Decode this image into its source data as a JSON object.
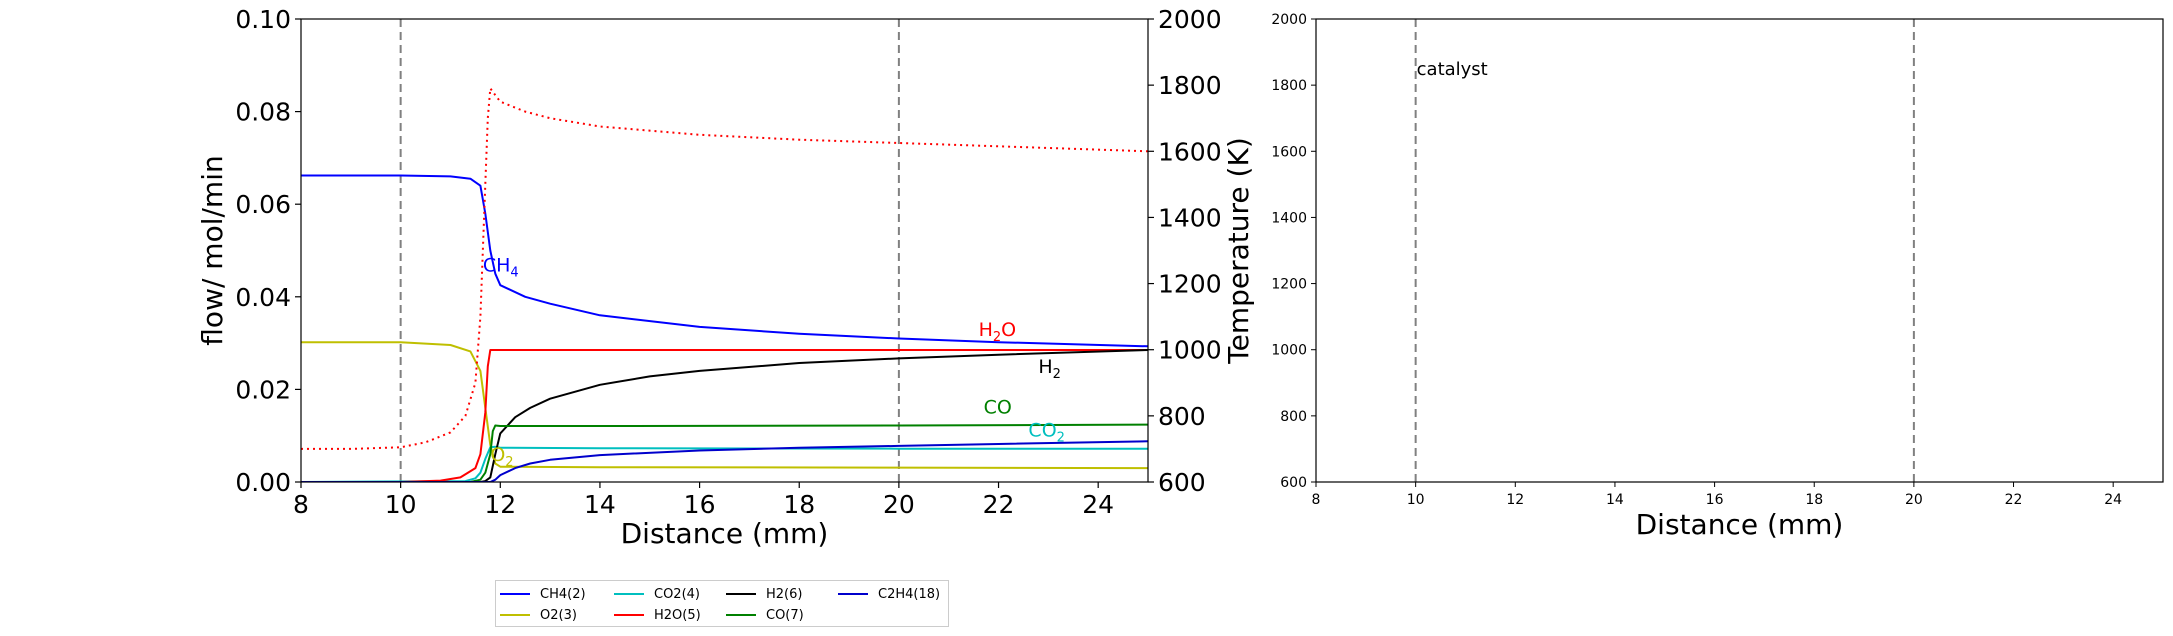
{
  "chart_data": [
    {
      "type": "line",
      "xlabel": "Distance (mm)",
      "ylabel": "flow/ mol/min",
      "y2label": "Temperature (K)",
      "xlim": [
        8,
        25
      ],
      "ylim": [
        0,
        0.1
      ],
      "y2lim": [
        600,
        2000
      ],
      "x_ticks": [
        8,
        10,
        12,
        14,
        16,
        18,
        20,
        22,
        24
      ],
      "y_ticks": [
        0.0,
        0.02,
        0.04,
        0.06,
        0.08,
        0.1
      ],
      "y_tick_labels": [
        "0.00",
        "0.02",
        "0.04",
        "0.06",
        "0.08",
        "0.10"
      ],
      "y2_ticks": [
        600,
        800,
        1000,
        1200,
        1400,
        1600,
        1800,
        2000
      ],
      "vlines": [
        10,
        20
      ],
      "grid": false,
      "series": [
        {
          "name": "CH4(2)",
          "color": "#0000ff",
          "style": "solid",
          "x": [
            8,
            10,
            11,
            11.4,
            11.6,
            11.7,
            11.8,
            11.9,
            12,
            12.5,
            13,
            14,
            16,
            18,
            20,
            22,
            25
          ],
          "y": [
            0.0662,
            0.0662,
            0.066,
            0.0655,
            0.064,
            0.058,
            0.05,
            0.045,
            0.0425,
            0.04,
            0.0385,
            0.036,
            0.0335,
            0.032,
            0.031,
            0.0302,
            0.0293
          ]
        },
        {
          "name": "O2(3)",
          "color": "#bfbf00",
          "style": "solid",
          "x": [
            8,
            10,
            11,
            11.4,
            11.6,
            11.7,
            11.8,
            11.9,
            12,
            14,
            20,
            25
          ],
          "y": [
            0.0302,
            0.0302,
            0.0296,
            0.0282,
            0.024,
            0.016,
            0.008,
            0.004,
            0.0033,
            0.0032,
            0.0031,
            0.003
          ]
        },
        {
          "name": "CO2(4)",
          "color": "#00bfbf",
          "style": "solid",
          "x": [
            8,
            11.3,
            11.5,
            11.6,
            11.7,
            11.8,
            11.9,
            12,
            14,
            20,
            25
          ],
          "y": [
            0,
            0.0002,
            0.0008,
            0.002,
            0.005,
            0.0075,
            0.0076,
            0.0074,
            0.0073,
            0.0072,
            0.0072
          ]
        },
        {
          "name": "H2O(5)",
          "color": "#ff0000",
          "style": "solid",
          "x": [
            8,
            10,
            10.8,
            11.2,
            11.5,
            11.6,
            11.7,
            11.75,
            11.8,
            11.9,
            12,
            14,
            20,
            25
          ],
          "y": [
            0,
            0,
            0.0003,
            0.001,
            0.003,
            0.006,
            0.015,
            0.025,
            0.0285,
            0.0285,
            0.0285,
            0.0285,
            0.0285,
            0.0285
          ]
        },
        {
          "name": "H2(6)",
          "color": "#000000",
          "style": "solid",
          "x": [
            8,
            11.6,
            11.7,
            11.8,
            11.9,
            12,
            12.3,
            12.6,
            13,
            14,
            15,
            16,
            18,
            20,
            22,
            25
          ],
          "y": [
            0,
            0,
            0.0002,
            0.001,
            0.006,
            0.0105,
            0.014,
            0.016,
            0.018,
            0.021,
            0.0228,
            0.024,
            0.0257,
            0.0267,
            0.0275,
            0.0285
          ]
        },
        {
          "name": "CO(7)",
          "color": "#008000",
          "style": "solid",
          "x": [
            8,
            11.4,
            11.6,
            11.7,
            11.8,
            11.85,
            11.9,
            12,
            14,
            20,
            25
          ],
          "y": [
            0,
            0,
            0.0005,
            0.002,
            0.006,
            0.011,
            0.0122,
            0.0121,
            0.0121,
            0.0122,
            0.0124
          ]
        },
        {
          "name": "C2H4(18)",
          "color": "#0000cc",
          "style": "solid",
          "x": [
            8,
            11.8,
            11.9,
            12,
            12.3,
            12.6,
            13,
            14,
            16,
            18,
            20,
            22,
            25
          ],
          "y": [
            0,
            0,
            0.0005,
            0.0015,
            0.003,
            0.004,
            0.0048,
            0.0058,
            0.0068,
            0.0074,
            0.0078,
            0.0082,
            0.0088
          ]
        },
        {
          "name": "Temperature",
          "color": "#ff0000",
          "style": "dotted",
          "axis": "right",
          "x": [
            8,
            9,
            10,
            10.5,
            11,
            11.3,
            11.5,
            11.6,
            11.7,
            11.75,
            11.8,
            11.9,
            12,
            12.5,
            13,
            14,
            16,
            18,
            20,
            22,
            25
          ],
          "y": [
            700,
            700,
            705,
            720,
            750,
            800,
            900,
            1100,
            1500,
            1700,
            1790,
            1770,
            1750,
            1720,
            1700,
            1675,
            1650,
            1635,
            1625,
            1615,
            1600
          ]
        }
      ],
      "annotations": [
        {
          "text": "CH",
          "sub": "4",
          "x": 11.65,
          "y": 0.0455,
          "color": "#0000ff"
        },
        {
          "text": "H",
          "sub": "2",
          "tail": "O",
          "x": 21.6,
          "y": 0.0315,
          "color": "#ff0000"
        },
        {
          "text": "H",
          "sub": "2",
          "x": 22.8,
          "y": 0.0235,
          "color": "#000000"
        },
        {
          "text": "CO",
          "x": 21.7,
          "y": 0.0148,
          "color": "#008000"
        },
        {
          "text": "CO",
          "sub": "2",
          "x": 22.6,
          "y": 0.0098,
          "color": "#00bfbf"
        },
        {
          "text": "O",
          "sub": "2",
          "x": 11.8,
          "y": 0.0045,
          "color": "#bfbf00"
        }
      ],
      "legend": {
        "placement": "below",
        "columns": 4,
        "entries": [
          "CH4(2)",
          "O2(3)",
          "CO2(4)",
          "H2O(5)",
          "H2(6)",
          "CO(7)",
          "C2H4(18)"
        ]
      }
    },
    {
      "type": "line",
      "xlabel": "Distance (mm)",
      "xlim": [
        8,
        25
      ],
      "ylim": [
        600,
        2000
      ],
      "x_ticks": [
        8,
        10,
        12,
        14,
        16,
        18,
        20,
        22,
        24
      ],
      "y_ticks": [
        600,
        800,
        1000,
        1200,
        1400,
        1600,
        1800,
        2000
      ],
      "vlines": [
        10,
        20
      ],
      "grid": false,
      "series": [],
      "annotations": [
        {
          "text": "catalyst",
          "x": 10,
          "y": 1830,
          "color": "#000000"
        }
      ]
    }
  ]
}
